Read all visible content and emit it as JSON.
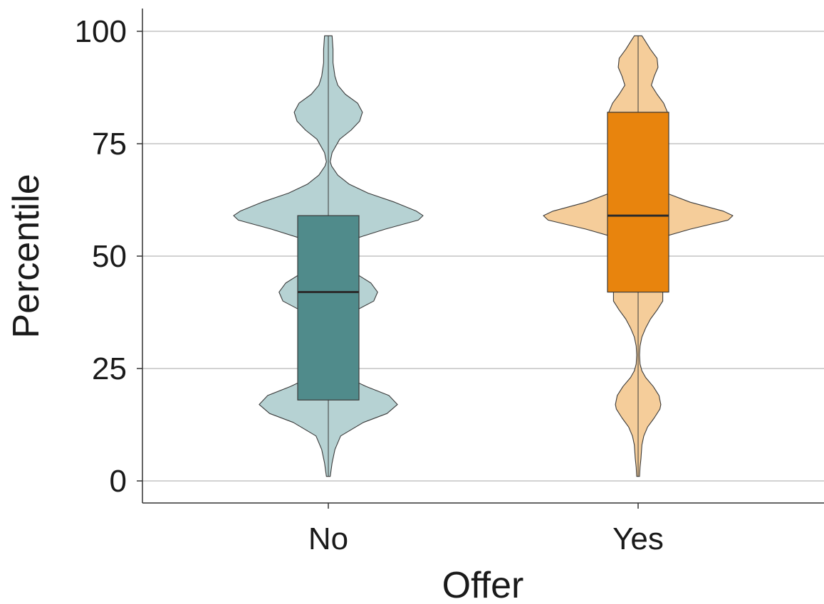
{
  "chart_data": {
    "type": "violin",
    "title": "",
    "xlabel": "Offer",
    "ylabel": "Percentile",
    "categories": [
      "No",
      "Yes"
    ],
    "ylim": [
      -5,
      105
    ],
    "yticks": [
      0,
      25,
      50,
      75,
      100
    ],
    "grid": "horizontal",
    "legend": "none",
    "series": [
      {
        "category": "No",
        "box": {
          "q1": 18,
          "median": 42,
          "q3": 59
        },
        "range": [
          1,
          99
        ],
        "fill_violin": "#b6d2d3",
        "fill_box": "#508b8b",
        "density": [
          [
            1,
            0.02
          ],
          [
            4,
            0.04
          ],
          [
            7,
            0.07
          ],
          [
            10,
            0.13
          ],
          [
            13,
            0.37
          ],
          [
            15,
            0.62
          ],
          [
            17,
            0.73
          ],
          [
            19,
            0.64
          ],
          [
            21,
            0.4
          ],
          [
            23,
            0.2
          ],
          [
            26,
            0.12
          ],
          [
            29,
            0.1
          ],
          [
            33,
            0.1
          ],
          [
            36,
            0.14
          ],
          [
            38,
            0.3
          ],
          [
            40,
            0.48
          ],
          [
            42,
            0.52
          ],
          [
            44,
            0.45
          ],
          [
            46,
            0.3
          ],
          [
            48,
            0.16
          ],
          [
            51,
            0.14
          ],
          [
            54,
            0.3
          ],
          [
            56,
            0.6
          ],
          [
            58,
            0.95
          ],
          [
            59,
            1.0
          ],
          [
            60,
            0.93
          ],
          [
            62,
            0.7
          ],
          [
            64,
            0.42
          ],
          [
            66,
            0.22
          ],
          [
            68,
            0.1
          ],
          [
            70,
            0.035
          ],
          [
            71,
            0.02
          ],
          [
            73,
            0.04
          ],
          [
            76,
            0.12
          ],
          [
            78,
            0.24
          ],
          [
            80,
            0.33
          ],
          [
            82,
            0.36
          ],
          [
            84,
            0.31
          ],
          [
            86,
            0.18
          ],
          [
            88,
            0.1
          ],
          [
            90,
            0.07
          ],
          [
            93,
            0.05
          ],
          [
            96,
            0.05
          ],
          [
            99,
            0.04
          ]
        ]
      },
      {
        "category": "Yes",
        "box": {
          "q1": 42,
          "median": 59,
          "q3": 82
        },
        "range": [
          1,
          99
        ],
        "fill_violin": "#f5cd9a",
        "fill_box": "#e8840d",
        "density": [
          [
            1,
            0.015
          ],
          [
            3,
            0.02
          ],
          [
            5,
            0.03
          ],
          [
            8,
            0.04
          ],
          [
            10,
            0.06
          ],
          [
            12,
            0.1
          ],
          [
            14,
            0.17
          ],
          [
            16,
            0.23
          ],
          [
            17,
            0.24
          ],
          [
            19,
            0.22
          ],
          [
            21,
            0.16
          ],
          [
            23,
            0.08
          ],
          [
            24.5,
            0.04
          ],
          [
            26,
            0.02
          ],
          [
            28,
            0.015
          ],
          [
            30,
            0.02
          ],
          [
            32,
            0.04
          ],
          [
            34,
            0.08
          ],
          [
            36,
            0.13
          ],
          [
            38,
            0.2
          ],
          [
            40,
            0.26
          ],
          [
            42,
            0.26
          ],
          [
            44,
            0.18
          ],
          [
            46,
            0.11
          ],
          [
            49,
            0.08
          ],
          [
            52,
            0.1
          ],
          [
            54,
            0.22
          ],
          [
            56,
            0.55
          ],
          [
            58,
            0.95
          ],
          [
            59,
            1.0
          ],
          [
            60,
            0.9
          ],
          [
            62,
            0.55
          ],
          [
            64,
            0.3
          ],
          [
            66,
            0.18
          ],
          [
            68,
            0.12
          ],
          [
            70,
            0.09
          ],
          [
            72,
            0.07
          ],
          [
            75,
            0.07
          ],
          [
            77,
            0.1
          ],
          [
            79,
            0.18
          ],
          [
            81,
            0.28
          ],
          [
            82,
            0.31
          ],
          [
            84,
            0.27
          ],
          [
            86,
            0.2
          ],
          [
            88,
            0.14
          ],
          [
            90,
            0.17
          ],
          [
            92,
            0.21
          ],
          [
            94,
            0.2
          ],
          [
            96,
            0.13
          ],
          [
            98,
            0.07
          ],
          [
            99,
            0.04
          ]
        ]
      }
    ]
  }
}
